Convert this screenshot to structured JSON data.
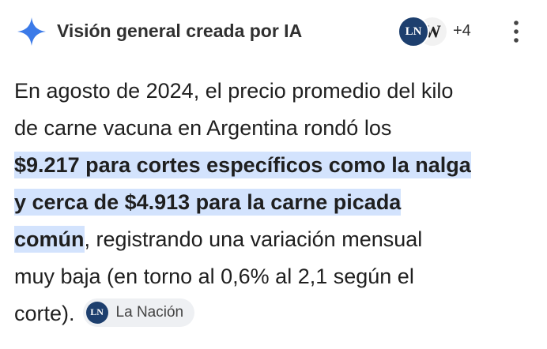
{
  "header": {
    "title": "Visión general creada por IA",
    "source_icons": [
      "LN",
      "W"
    ],
    "more_sources": "+4"
  },
  "body": {
    "lines": [
      [
        {
          "text": "En agosto de 2024, el precio promedio del kilo",
          "highlight": false
        }
      ],
      [
        {
          "text": "de carne vacuna en Argentina rondó los",
          "highlight": false
        }
      ],
      [
        {
          "text": "$9.217 para cortes específicos como la nalga",
          "highlight": true
        }
      ],
      [
        {
          "text": "y cerca de $4.913 para la carne picada",
          "highlight": true
        }
      ],
      [
        {
          "text": "común",
          "highlight": true
        },
        {
          "text": ", registrando una variación mensual",
          "highlight": false
        }
      ],
      [
        {
          "text": "muy baja (en torno al 0,6% al 2,1 según el",
          "highlight": false
        }
      ],
      [
        {
          "text": "corte).",
          "highlight": false
        }
      ]
    ]
  },
  "citation": {
    "icon": "LN",
    "label": "La Nación"
  }
}
